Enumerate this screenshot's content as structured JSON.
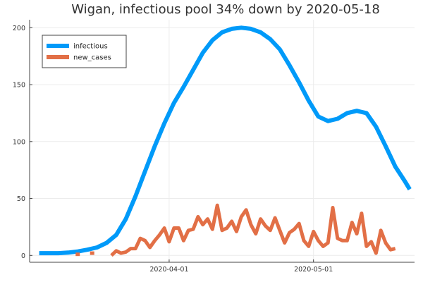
{
  "chart_data": {
    "type": "line",
    "title": "Wigan, infectious pool 34% down by 2020-05-18",
    "xlabel": "",
    "ylabel": "",
    "x_range": [
      "2020-03-03",
      "2020-05-22"
    ],
    "ylim": [
      -6,
      207
    ],
    "grid": true,
    "legend_position": "top-left",
    "x_ticks": [
      {
        "date": "2020-04-01",
        "label": "2020-04-01"
      },
      {
        "date": "2020-05-01",
        "label": "2020-05-01"
      }
    ],
    "y_ticks": [
      0,
      50,
      100,
      150,
      200
    ],
    "series": [
      {
        "name": "infectious",
        "color": "#009af9",
        "points": [
          [
            "2020-03-05",
            2
          ],
          [
            "2020-03-07",
            2
          ],
          [
            "2020-03-09",
            2
          ],
          [
            "2020-03-11",
            2.5
          ],
          [
            "2020-03-13",
            3.5
          ],
          [
            "2020-03-15",
            5
          ],
          [
            "2020-03-17",
            7
          ],
          [
            "2020-03-19",
            11
          ],
          [
            "2020-03-21",
            18
          ],
          [
            "2020-03-23",
            32
          ],
          [
            "2020-03-25",
            52
          ],
          [
            "2020-03-27",
            74
          ],
          [
            "2020-03-29",
            96
          ],
          [
            "2020-03-31",
            116
          ],
          [
            "2020-04-02",
            134
          ],
          [
            "2020-04-04",
            148
          ],
          [
            "2020-04-06",
            163
          ],
          [
            "2020-04-08",
            178
          ],
          [
            "2020-04-10",
            189
          ],
          [
            "2020-04-12",
            196
          ],
          [
            "2020-04-14",
            199
          ],
          [
            "2020-04-16",
            200
          ],
          [
            "2020-04-18",
            199
          ],
          [
            "2020-04-20",
            196
          ],
          [
            "2020-04-22",
            190
          ],
          [
            "2020-04-24",
            181
          ],
          [
            "2020-04-26",
            167
          ],
          [
            "2020-04-28",
            152
          ],
          [
            "2020-04-30",
            136
          ],
          [
            "2020-05-02",
            122
          ],
          [
            "2020-05-04",
            118
          ],
          [
            "2020-05-06",
            120
          ],
          [
            "2020-05-08",
            125
          ],
          [
            "2020-05-10",
            127
          ],
          [
            "2020-05-12",
            125
          ],
          [
            "2020-05-14",
            113
          ],
          [
            "2020-05-16",
            96
          ],
          [
            "2020-05-18",
            78
          ],
          [
            "2020-05-20",
            65
          ],
          [
            "2020-05-21",
            58
          ]
        ]
      },
      {
        "name": "new_cases",
        "color": "#e26f46",
        "points": [
          [
            "2020-03-13",
            1
          ],
          [
            "2020-03-16",
            2
          ],
          [
            "2020-03-20",
            0
          ],
          [
            "2020-03-21",
            4
          ],
          [
            "2020-03-22",
            2
          ],
          [
            "2020-03-23",
            3
          ],
          [
            "2020-03-24",
            6
          ],
          [
            "2020-03-25",
            6
          ],
          [
            "2020-03-26",
            15
          ],
          [
            "2020-03-27",
            13
          ],
          [
            "2020-03-28",
            7
          ],
          [
            "2020-03-29",
            13
          ],
          [
            "2020-03-30",
            18
          ],
          [
            "2020-03-31",
            24
          ],
          [
            "2020-04-01",
            12
          ],
          [
            "2020-04-02",
            24
          ],
          [
            "2020-04-03",
            24
          ],
          [
            "2020-04-04",
            13
          ],
          [
            "2020-04-05",
            22
          ],
          [
            "2020-04-06",
            23
          ],
          [
            "2020-04-07",
            34
          ],
          [
            "2020-04-08",
            27
          ],
          [
            "2020-04-09",
            32
          ],
          [
            "2020-04-10",
            23
          ],
          [
            "2020-04-11",
            44
          ],
          [
            "2020-04-12",
            22
          ],
          [
            "2020-04-13",
            24
          ],
          [
            "2020-04-14",
            30
          ],
          [
            "2020-04-15",
            21
          ],
          [
            "2020-04-16",
            34
          ],
          [
            "2020-04-17",
            40
          ],
          [
            "2020-04-18",
            27
          ],
          [
            "2020-04-19",
            19
          ],
          [
            "2020-04-20",
            32
          ],
          [
            "2020-04-21",
            26
          ],
          [
            "2020-04-22",
            22
          ],
          [
            "2020-04-23",
            33
          ],
          [
            "2020-04-24",
            22
          ],
          [
            "2020-04-25",
            11
          ],
          [
            "2020-04-26",
            20
          ],
          [
            "2020-04-27",
            23
          ],
          [
            "2020-04-28",
            28
          ],
          [
            "2020-04-29",
            13
          ],
          [
            "2020-04-30",
            8
          ],
          [
            "2020-05-01",
            21
          ],
          [
            "2020-05-02",
            13
          ],
          [
            "2020-05-03",
            8
          ],
          [
            "2020-05-04",
            11
          ],
          [
            "2020-05-05",
            42
          ],
          [
            "2020-05-06",
            15
          ],
          [
            "2020-05-07",
            13
          ],
          [
            "2020-05-08",
            13
          ],
          [
            "2020-05-09",
            29
          ],
          [
            "2020-05-10",
            19
          ],
          [
            "2020-05-11",
            37
          ],
          [
            "2020-05-12",
            8
          ],
          [
            "2020-05-13",
            12
          ],
          [
            "2020-05-14",
            2
          ],
          [
            "2020-05-15",
            22
          ],
          [
            "2020-05-16",
            11
          ],
          [
            "2020-05-17",
            5
          ],
          [
            "2020-05-18",
            6
          ]
        ]
      }
    ]
  }
}
